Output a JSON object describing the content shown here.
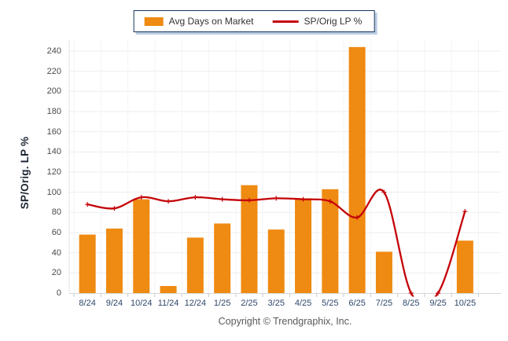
{
  "legend": {
    "bar_label": "Avg Days on Market",
    "line_label": "SP/Orig LP %"
  },
  "y_axis": {
    "title": "SP/Orig. LP %"
  },
  "footer": {
    "copyright": "Copyright © Trendgraphix, Inc."
  },
  "colors": {
    "bar": "#EF8A12",
    "line": "#C40208",
    "grid_h": "#EDEDED",
    "grid_v": "#F4F4F4",
    "axis_line": "#D6D6D6",
    "tick_mark": "#C9C9C9",
    "x_label": "#2E4669",
    "y_label": "#4A4A4A",
    "y_title": "#1C2531",
    "legend_border": "#16365C",
    "legend_shadow": "#BCCDE4",
    "footer": "#595959"
  },
  "chart_data": {
    "type": "bar+line",
    "title": "",
    "categories": [
      "8/24",
      "9/24",
      "10/24",
      "11/24",
      "12/24",
      "1/25",
      "2/25",
      "3/25",
      "4/25",
      "5/25",
      "6/25",
      "7/25",
      "8/25",
      "9/25",
      "10/25"
    ],
    "series": [
      {
        "name": "Avg Days on Market",
        "type": "bar",
        "values": [
          58,
          64,
          93,
          7,
          55,
          69,
          107,
          63,
          94,
          103,
          244,
          41,
          0,
          0,
          52
        ]
      },
      {
        "name": "SP/Orig LP %",
        "type": "line",
        "values": [
          88,
          84,
          95,
          91,
          95,
          93,
          92,
          94,
          93,
          91,
          75,
          100,
          0,
          0,
          81
        ]
      }
    ],
    "ylabel": "SP/Orig. LP %",
    "xlabel": "",
    "ylim": [
      0,
      240
    ],
    "y_ticks": [
      0,
      20,
      40,
      60,
      80,
      100,
      120,
      140,
      160,
      180,
      200,
      220,
      240
    ],
    "grid": "on",
    "legend_position": "top-center",
    "line_smoothing": "spline",
    "notes": "line dips to 0 at 8/25 and 9/25 (clipped below baseline); bar for 6/25 exceeds top tick"
  }
}
